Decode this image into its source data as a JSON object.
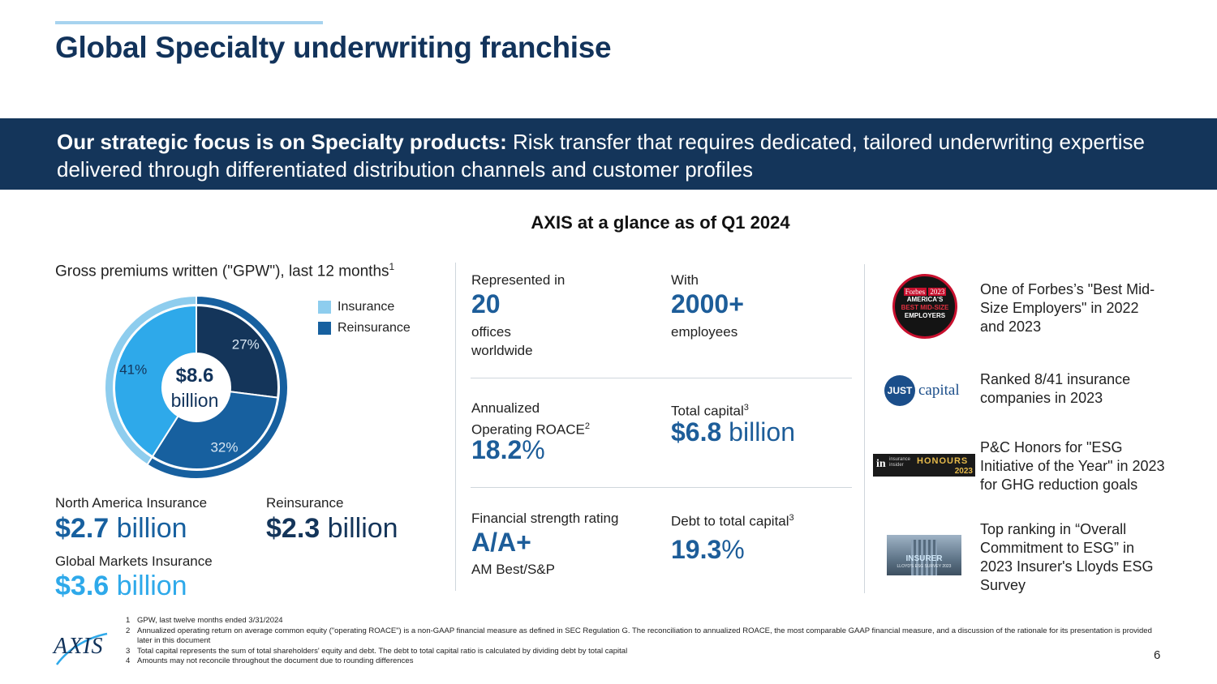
{
  "header": {
    "title": "Global Specialty underwriting franchise"
  },
  "banner": {
    "lead": "Our strategic focus is on Specialty products:",
    "body": " Risk transfer that requires dedicated, tailored underwriting expertise delivered through differentiated distribution channels and customer profiles"
  },
  "glance_title": "AXIS at a glance as of Q1 2024",
  "gpw": {
    "title": "Gross premiums written (\"GPW\"), last 12 months",
    "title_note": "1",
    "total_value": "$8.6",
    "total_unit": "billion",
    "legend": [
      {
        "label": "Insurance",
        "color": "#8ecdee"
      },
      {
        "label": "Reinsurance",
        "color": "#17609f"
      }
    ],
    "slices": [
      {
        "label": "27%",
        "value": 27,
        "color": "#14355a"
      },
      {
        "label": "32%",
        "value": 32,
        "color": "#17609f"
      },
      {
        "label": "41%",
        "value": 41,
        "color": "#2ea9ea"
      }
    ],
    "outer_ring": [
      {
        "value": 59,
        "color": "#17609f"
      },
      {
        "value": 41,
        "color": "#8ecdee"
      }
    ],
    "segments": {
      "north_america": {
        "label": "North America Insurance",
        "amount": "$2.7",
        "unit": " billion",
        "color": "#17609f"
      },
      "reinsurance": {
        "label": "Reinsurance",
        "amount": "$2.3",
        "unit": " billion",
        "color": "#14355a"
      },
      "global_markets": {
        "label": "Global Markets Insurance",
        "amount": "$3.6",
        "unit": " billion",
        "color": "#2ea9ea"
      }
    }
  },
  "kpis": {
    "offices": {
      "label": "Represented in",
      "value": "20",
      "sub1": "offices",
      "sub2": "worldwide"
    },
    "employees": {
      "label": "With",
      "value": "2000+",
      "sub": "employees"
    },
    "roace": {
      "label1": "Annualized",
      "label2": "Operating ROACE",
      "note": "2",
      "number": "18.2",
      "unit": "%"
    },
    "capital": {
      "label": "Total capital",
      "note": "3",
      "number": "$6.8",
      "unit": " billion"
    },
    "rating": {
      "label": "Financial strength rating",
      "value": "A/A+",
      "sub": "AM Best/S&P"
    },
    "debt": {
      "label": "Debt to total capital",
      "note": "3",
      "number": "19.3",
      "unit": "%"
    }
  },
  "awards": {
    "forbes": {
      "text": "One of Forbes’s \"Best Mid-Size Employers\" in 2022 and 2023",
      "logo": {
        "brand": "Forbes",
        "year": "2023",
        "line1": "AMERICA'S",
        "line2": "BEST MID-SIZE",
        "line3": "EMPLOYERS"
      }
    },
    "just": {
      "text": "Ranked 8/41 insurance companies in 2023",
      "logo": {
        "mark": "JUST",
        "word": "capital"
      }
    },
    "honours": {
      "text": "P&C Honors for \"ESG Initiative of the Year\" in 2023 for GHG reduction goals",
      "logo": {
        "mark": "in",
        "sub": "insurance insider",
        "word": "HONOURS",
        "year": "2023"
      }
    },
    "insurer": {
      "text": "Top ranking in “Overall Commitment to ESG” in 2023 Insurer's Lloyds ESG Survey",
      "logo": {
        "word": "INSURER",
        "sub": "LLOYD'S ESG SURVEY 2023"
      }
    }
  },
  "footnotes": [
    {
      "n": "1",
      "text": "GPW, last twelve months ended 3/31/2024"
    },
    {
      "n": "2",
      "text": "Annualized operating return on average common equity (\"operating ROACE\") is a non-GAAP financial measure as defined in SEC Regulation G. The reconciliation to annualized ROACE, the most comparable GAAP financial measure, and a discussion of the rationale for its presentation is provided later in this document"
    },
    {
      "n": "3",
      "text": "Total capital represents the sum of total shareholders' equity and debt. The debt to total capital ratio is calculated by dividing debt by total capital"
    },
    {
      "n": "4",
      "text": "Amounts may not reconcile throughout the document due to rounding differences"
    }
  ],
  "footer": {
    "logo": "AXIS",
    "page_number": "6"
  }
}
